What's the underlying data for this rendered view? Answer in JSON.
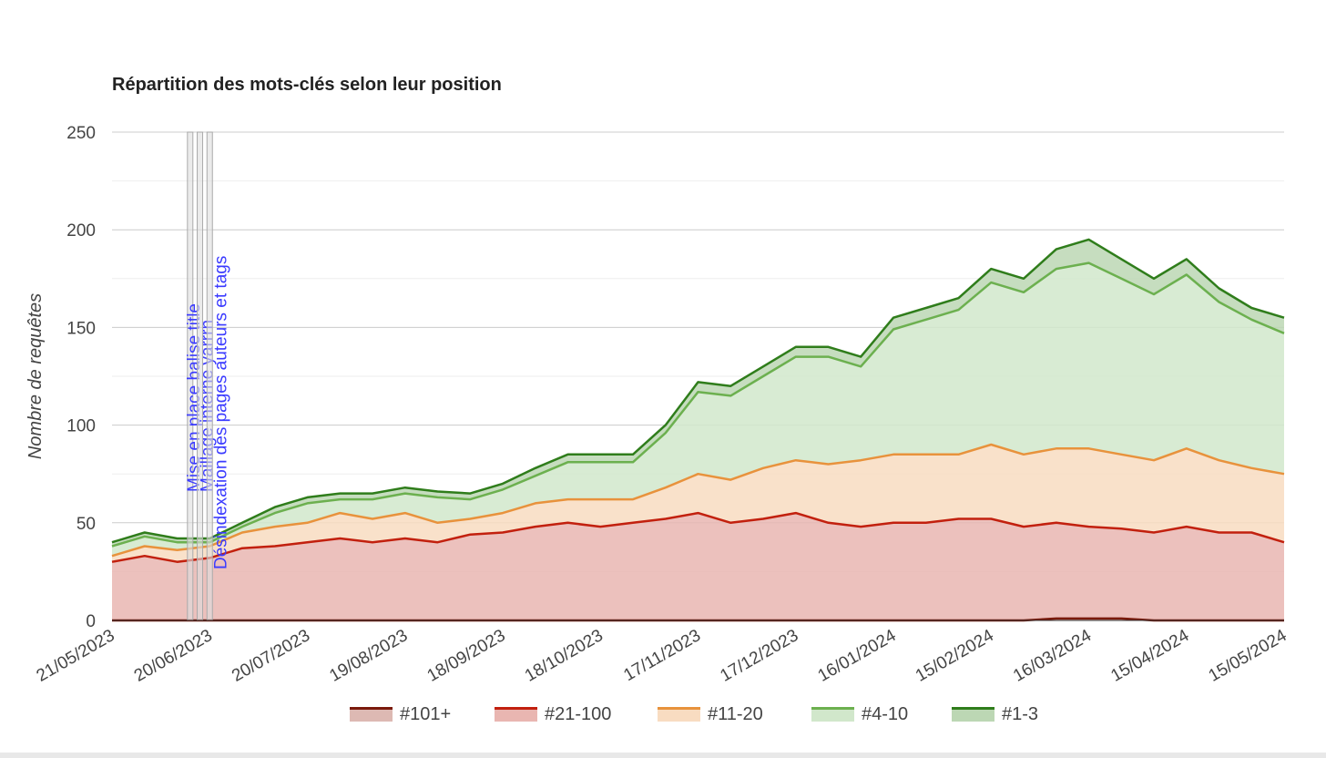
{
  "chart_data": {
    "type": "area",
    "stacked": true,
    "title": "Répartition des mots-clés selon leur position",
    "xlabel": "",
    "ylabel": "Nombre de requêtes",
    "ylim": [
      0,
      250
    ],
    "yticks": [
      0,
      50,
      100,
      150,
      200,
      250
    ],
    "grid": true,
    "legend_position": "bottom",
    "xticks": [
      "21/05/2023",
      "20/06/2023",
      "20/07/2023",
      "19/08/2023",
      "18/09/2023",
      "18/10/2023",
      "17/11/2023",
      "17/12/2023",
      "16/01/2024",
      "15/02/2024",
      "16/03/2024",
      "15/04/2024",
      "15/05/2024"
    ],
    "x": [
      "21/05/2023",
      "31/05/2023",
      "10/06/2023",
      "20/06/2023",
      "30/06/2023",
      "10/07/2023",
      "20/07/2023",
      "30/07/2023",
      "09/08/2023",
      "19/08/2023",
      "29/08/2023",
      "08/09/2023",
      "18/09/2023",
      "28/09/2023",
      "08/10/2023",
      "18/10/2023",
      "28/10/2023",
      "07/11/2023",
      "17/11/2023",
      "27/11/2023",
      "07/12/2023",
      "17/12/2023",
      "27/12/2023",
      "06/01/2024",
      "16/01/2024",
      "26/01/2024",
      "05/02/2024",
      "15/02/2024",
      "25/02/2024",
      "06/03/2024",
      "16/03/2024",
      "26/03/2024",
      "05/04/2024",
      "15/04/2024",
      "25/04/2024",
      "05/05/2024",
      "15/05/2024"
    ],
    "series": [
      {
        "name": "#101+",
        "line": "#7a1a0c",
        "fill": "#ddb9b3",
        "values": [
          0,
          0,
          0,
          0,
          0,
          0,
          0,
          0,
          0,
          0,
          0,
          0,
          0,
          0,
          0,
          0,
          0,
          0,
          0,
          0,
          0,
          0,
          0,
          0,
          0,
          0,
          0,
          0,
          0,
          1,
          1,
          1,
          0,
          0,
          0,
          0,
          0
        ]
      },
      {
        "name": "#21-100",
        "line": "#c2200e",
        "fill": "#e9b6b1",
        "values": [
          30,
          33,
          30,
          32,
          37,
          38,
          40,
          42,
          40,
          42,
          40,
          44,
          45,
          48,
          50,
          48,
          50,
          52,
          55,
          50,
          52,
          55,
          50,
          48,
          50,
          50,
          52,
          52,
          48,
          49,
          47,
          46,
          45,
          48,
          45,
          45,
          40
        ]
      },
      {
        "name": "#11-20",
        "line": "#e8923c",
        "fill": "#f8dcc1",
        "values": [
          3,
          5,
          6,
          6,
          8,
          10,
          10,
          13,
          12,
          13,
          10,
          8,
          10,
          12,
          12,
          14,
          12,
          16,
          20,
          22,
          26,
          27,
          30,
          34,
          35,
          35,
          33,
          38,
          37,
          38,
          40,
          38,
          37,
          40,
          37,
          33,
          35
        ]
      },
      {
        "name": "#4-10",
        "line": "#6cb04f",
        "fill": "#d1e7cb",
        "values": [
          5,
          5,
          4,
          2,
          3,
          7,
          10,
          7,
          10,
          10,
          13,
          10,
          12,
          14,
          19,
          19,
          19,
          28,
          42,
          43,
          47,
          53,
          55,
          48,
          64,
          69,
          74,
          83,
          83,
          92,
          95,
          90,
          85,
          89,
          81,
          76,
          72
        ]
      },
      {
        "name": "#1-3",
        "line": "#2f7d1b",
        "fill": "#bcd7b4",
        "values": [
          2,
          2,
          2,
          2,
          2,
          3,
          3,
          3,
          3,
          3,
          3,
          3,
          3,
          4,
          4,
          4,
          4,
          4,
          5,
          5,
          5,
          5,
          5,
          5,
          6,
          6,
          6,
          7,
          7,
          10,
          12,
          10,
          8,
          8,
          7,
          6,
          8
        ]
      }
    ],
    "annotations": [
      {
        "x": "14/06/2023",
        "text": "Mise en place balise title"
      },
      {
        "x": "17/06/2023",
        "text": "Maillage interne yarrrn"
      },
      {
        "x": "20/06/2023",
        "text": "Désindexation des pages auteurs et tags"
      }
    ]
  }
}
